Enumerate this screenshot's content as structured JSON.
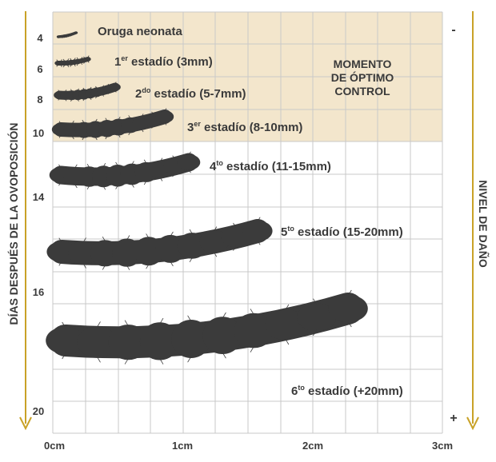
{
  "y_axis_title": "DÍAS DESPUÉS DE LA OVOPOSICIÓN",
  "right_axis_title": "NIVEL DE DAÑO",
  "damage_low_symbol": "-",
  "damage_high_symbol": "+",
  "optimal_control_label": [
    "MOMENTO",
    "DE ÓPTIMO",
    "CONTROL"
  ],
  "x_ticks": [
    "0cm",
    "1cm",
    "2cm",
    "3cm"
  ],
  "day_ticks": [
    "4",
    "6",
    "8",
    "10",
    "14",
    "16",
    "20"
  ],
  "stages": [
    {
      "base": "Oruga neonata",
      "sup": "",
      "rest": ""
    },
    {
      "base": "1",
      "sup": "er",
      "rest": " estadío (3mm)"
    },
    {
      "base": "2",
      "sup": "do",
      "rest": " estadío (5-7mm)"
    },
    {
      "base": "3",
      "sup": "er",
      "rest": " estadío (8-10mm)"
    },
    {
      "base": "4",
      "sup": "to",
      "rest": " estadío (11-15mm)"
    },
    {
      "base": "5",
      "sup": "to",
      "rest": " estadío (15-20mm)"
    },
    {
      "base": "6",
      "sup": "to",
      "rest": " estadío (+20mm)"
    }
  ],
  "colors": {
    "highlight": "#f3e6cc",
    "grid": "#c9c9c9",
    "caterpillar": "#3b3b3b",
    "arrow": "#c9a227",
    "text": "#3a3a3a"
  }
}
